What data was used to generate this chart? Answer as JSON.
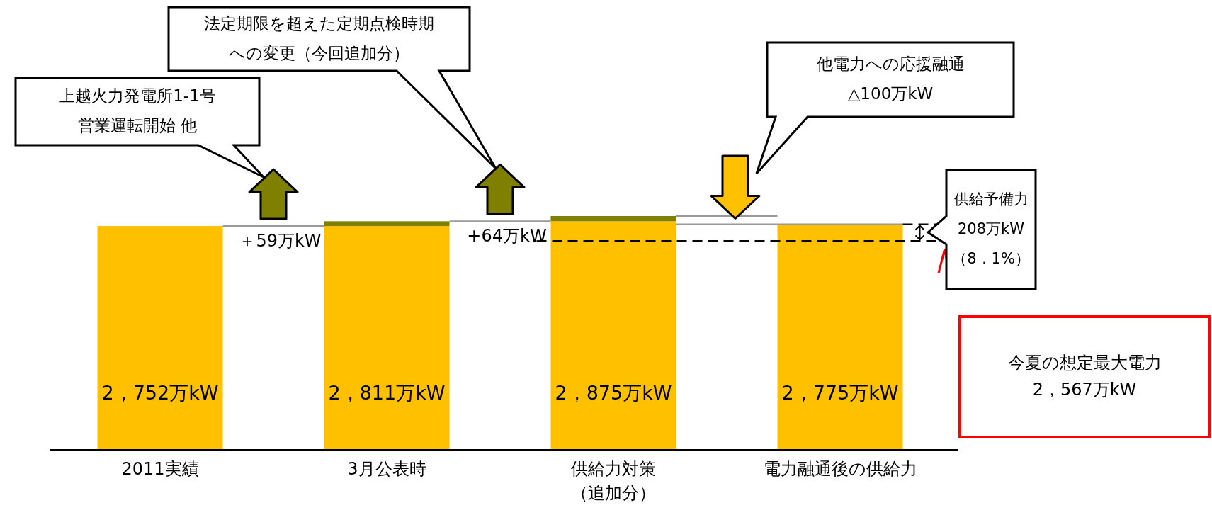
{
  "chart_data": {
    "type": "bar",
    "stacked": true,
    "categories": [
      "2011実績",
      "3月公表時",
      "供給力対策（追加分）",
      "電力融通後の供給力"
    ],
    "series": [
      {
        "color": "#ffc000",
        "values": [
          2752,
          2752,
          2811,
          2775
        ]
      },
      {
        "color": "#808000",
        "values": [
          null,
          59,
          64,
          null
        ],
        "value_labels": [
          null,
          "＋59万kW",
          "+64万kW",
          null
        ]
      }
    ],
    "totals": [
      "2，752万kW",
      "2，811万kW",
      "2，875万kW",
      "2，775万kW"
    ],
    "ref_lines": [
      {
        "axis": "y",
        "value": 2567,
        "label": "今夏の想定最大電力2，567万kW",
        "color": "#000000",
        "line_style": "dashed"
      }
    ],
    "annotations": [
      "上越火力発電所1-1号営業運転開始 他",
      "法定期限を超えた定期点検時期への変更（今回追加分）",
      "他電力への応援融通△100万kW",
      "供給予備力208万kW（8．1%）"
    ]
  }
}
